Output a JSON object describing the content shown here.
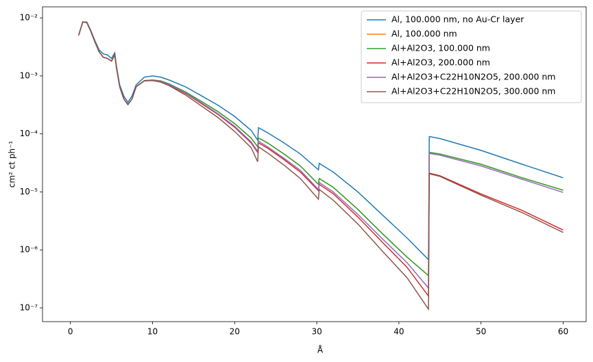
{
  "chart_data": {
    "type": "line",
    "xlabel": "Å",
    "ylabel": "cm² ct ph⁻¹",
    "log_y": true,
    "legend": "upper right",
    "xlim": [
      -3.4,
      62.8
    ],
    "ylim": [
      5.8e-08,
      0.0155
    ],
    "xticks": [
      0,
      10,
      20,
      30,
      40,
      50,
      60
    ],
    "yticks": [
      {
        "value": 1e-07,
        "label": "10⁻⁷"
      },
      {
        "value": 1e-06,
        "label": "10⁻⁶"
      },
      {
        "value": 1e-05,
        "label": "10⁻⁵"
      },
      {
        "value": 0.0001,
        "label": "10⁻⁴"
      },
      {
        "value": 0.001,
        "label": "10⁻³"
      },
      {
        "value": 0.01,
        "label": "10⁻²"
      }
    ],
    "x": [
      1,
      1.5,
      2,
      2.5,
      3,
      3.5,
      4,
      4.5,
      5,
      5.4,
      5.6,
      6,
      6.5,
      7,
      7.5,
      8,
      9,
      10,
      11,
      12,
      14,
      16,
      18,
      20,
      22,
      22.8,
      22.9,
      24,
      26,
      28,
      30.2,
      30.3,
      32,
      35,
      38,
      41,
      43.6,
      43.7,
      45,
      50,
      55,
      60
    ],
    "series": [
      {
        "name": "Al, 100.000 nm, no Au-Cr layer",
        "color": "#1f77b4",
        "values": [
          0.005,
          0.0085,
          0.0085,
          0.006,
          0.004,
          0.0028,
          0.0024,
          0.0023,
          0.002,
          0.0025,
          0.0015,
          0.0007,
          0.00045,
          0.00035,
          0.00045,
          0.0007,
          0.00095,
          0.001,
          0.00095,
          0.00085,
          0.00065,
          0.00045,
          0.00031,
          0.0002,
          0.000115,
          7.8e-05,
          0.000128,
          0.000105,
          7e-05,
          4.5e-05,
          2.4e-05,
          3.1e-05,
          2.2e-05,
          1e-05,
          4e-06,
          1.6e-06,
          6.8e-07,
          9e-05,
          8.3e-05,
          5.2e-05,
          3e-05,
          1.75e-05
        ]
      },
      {
        "name": "Al, 100.000 nm",
        "color": "#ff7f0e",
        "values": [
          0.005,
          0.0085,
          0.0083,
          0.0058,
          0.0038,
          0.0026,
          0.0021,
          0.002,
          0.0018,
          0.0023,
          0.0014,
          0.00065,
          0.0004,
          0.00032,
          0.0004,
          0.00065,
          0.00083,
          0.00085,
          0.00082,
          0.00073,
          0.00053,
          0.00036,
          0.00024,
          0.00015,
          8.5e-05,
          6e-05,
          8.5e-05,
          7e-05,
          4.5e-05,
          2.8e-05,
          1.35e-05,
          1.7e-05,
          1.2e-05,
          5e-06,
          1.9e-06,
          7.5e-07,
          3.6e-07,
          4.8e-05,
          4.5e-05,
          3e-05,
          1.75e-05,
          1.07e-05
        ]
      },
      {
        "name": "Al+Al2O3, 100.000 nm",
        "color": "#2ca02c",
        "values": [
          0.005,
          0.0085,
          0.0083,
          0.0058,
          0.0038,
          0.0026,
          0.0021,
          0.002,
          0.0018,
          0.0023,
          0.0014,
          0.00065,
          0.0004,
          0.00032,
          0.0004,
          0.00065,
          0.00083,
          0.00085,
          0.00082,
          0.00073,
          0.00053,
          0.00036,
          0.00024,
          0.00015,
          8.5e-05,
          6e-05,
          8.5e-05,
          7e-05,
          4.5e-05,
          2.8e-05,
          1.35e-05,
          1.7e-05,
          1.2e-05,
          5e-06,
          1.9e-06,
          7.5e-07,
          3.6e-07,
          4.8e-05,
          4.5e-05,
          3e-05,
          1.75e-05,
          1.07e-05
        ]
      },
      {
        "name": "Al+Al2O3, 200.000 nm",
        "color": "#d62728",
        "values": [
          0.005,
          0.0085,
          0.0083,
          0.0058,
          0.0038,
          0.0026,
          0.0021,
          0.002,
          0.0018,
          0.0023,
          0.0014,
          0.00065,
          0.0004,
          0.00032,
          0.0004,
          0.00065,
          0.00082,
          0.00084,
          0.0008,
          0.0007,
          0.0005,
          0.00033,
          0.000215,
          0.00013,
          7e-05,
          4.8e-05,
          7e-05,
          5.7e-05,
          3.6e-05,
          2.2e-05,
          1.05e-05,
          1.35e-05,
          9.3e-06,
          3.7e-06,
          1.35e-06,
          5e-07,
          1.6e-07,
          2.1e-05,
          1.9e-05,
          9.2e-06,
          4.8e-06,
          2.2e-06
        ]
      },
      {
        "name": "Al+Al2O3+C22H10N2O5, 200.000 nm",
        "color": "#9467bd",
        "values": [
          0.005,
          0.0085,
          0.0083,
          0.0058,
          0.0038,
          0.0026,
          0.0021,
          0.002,
          0.0018,
          0.0023,
          0.0014,
          0.00065,
          0.0004,
          0.00032,
          0.0004,
          0.00065,
          0.00082,
          0.00084,
          0.0008,
          0.00071,
          0.00051,
          0.00034,
          0.00022,
          0.000135,
          7.3e-05,
          5e-05,
          7.5e-05,
          6e-05,
          3.8e-05,
          2.35e-05,
          1.1e-05,
          1.45e-05,
          1e-05,
          4.1e-06,
          1.55e-06,
          6e-07,
          2.2e-07,
          4.6e-05,
          4.3e-05,
          2.8e-05,
          1.65e-05,
          9.8e-06
        ]
      },
      {
        "name": "Al+Al2O3+C22H10N2O5, 300.000 nm",
        "color": "#8c564b",
        "values": [
          0.005,
          0.0085,
          0.0083,
          0.0058,
          0.0038,
          0.0026,
          0.0021,
          0.002,
          0.0018,
          0.0023,
          0.0014,
          0.00065,
          0.0004,
          0.00032,
          0.0004,
          0.00065,
          0.00082,
          0.00083,
          0.00078,
          0.00068,
          0.00047,
          0.0003,
          0.00019,
          0.00011,
          5.8e-05,
          3.3e-05,
          6e-05,
          4.7e-05,
          2.9e-05,
          1.7e-05,
          7.5e-06,
          1.1e-05,
          7.2e-06,
          2.8e-06,
          9.5e-07,
          3.3e-07,
          9.5e-08,
          2.05e-05,
          1.85e-05,
          8.8e-06,
          4.4e-06,
          2e-06
        ]
      }
    ]
  }
}
